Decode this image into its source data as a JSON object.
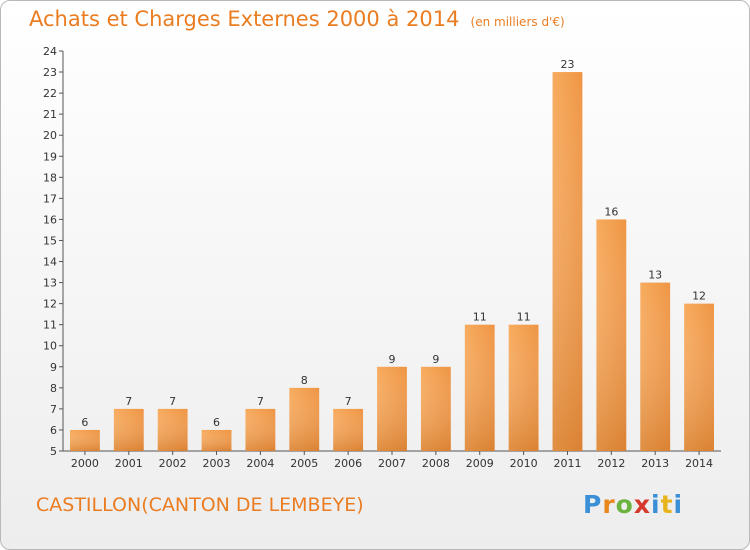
{
  "title": "Achats et Charges Externes 2000 à 2014",
  "subtitle": "(en milliers d'€)",
  "location": "CASTILLON(CANTON DE LEMBEYE)",
  "logo": {
    "text": "Proxiti",
    "letters": [
      "P",
      "r",
      "o",
      "x",
      "i",
      "t",
      "i"
    ]
  },
  "colors": {
    "accent": "#ea7d22",
    "bar_light": "#f6a556",
    "bar_dark": "#d9731c"
  },
  "chart_data": {
    "type": "bar",
    "title": "Achats et Charges Externes 2000 à 2014",
    "subtitle": "(en milliers d'€)",
    "categories": [
      "2000",
      "2001",
      "2002",
      "2003",
      "2004",
      "2005",
      "2006",
      "2007",
      "2008",
      "2009",
      "2010",
      "2011",
      "2012",
      "2013",
      "2014"
    ],
    "values": [
      6,
      7,
      7,
      6,
      7,
      8,
      7,
      9,
      9,
      11,
      11,
      23,
      16,
      13,
      12
    ],
    "xlabel": "",
    "ylabel": "",
    "ylim": [
      5,
      24
    ],
    "yticks": [
      5,
      6,
      7,
      8,
      9,
      10,
      11,
      12,
      13,
      14,
      15,
      16,
      17,
      18,
      19,
      20,
      21,
      22,
      23,
      24
    ],
    "grid": false,
    "legend": "none",
    "data_labels": true
  }
}
